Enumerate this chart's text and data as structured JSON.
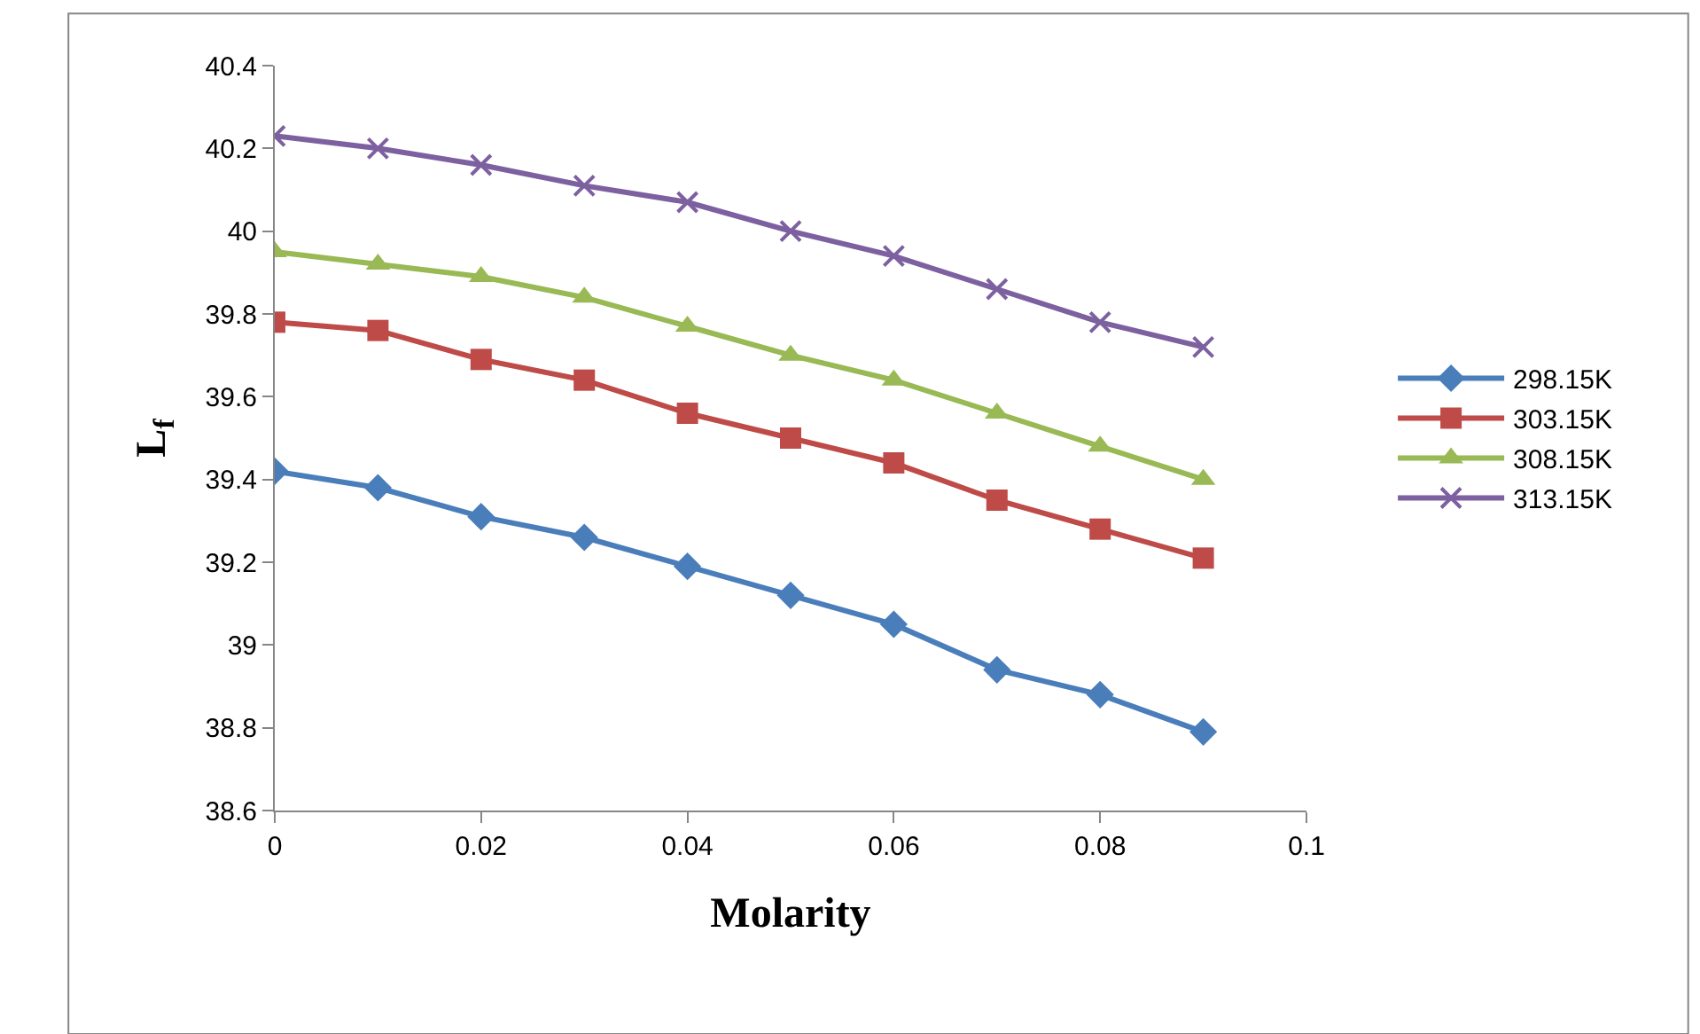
{
  "chart_data": {
    "type": "line",
    "xlabel": "Molarity",
    "ylabel": "L$_{f}$",
    "x": [
      0,
      0.01,
      0.02,
      0.03,
      0.04,
      0.05,
      0.06,
      0.07,
      0.08,
      0.09
    ],
    "series": [
      {
        "name": "298.15K",
        "color": "#4a7ebb",
        "marker": "diamond",
        "values": [
          39.42,
          39.38,
          39.31,
          39.26,
          39.19,
          39.12,
          39.05,
          38.94,
          38.88,
          38.79
        ]
      },
      {
        "name": "303.15K",
        "color": "#be4b48",
        "marker": "square",
        "values": [
          39.78,
          39.76,
          39.69,
          39.64,
          39.56,
          39.5,
          39.44,
          39.35,
          39.28,
          39.21
        ]
      },
      {
        "name": "308.15K",
        "color": "#98b954",
        "marker": "triangle",
        "values": [
          39.95,
          39.92,
          39.89,
          39.84,
          39.77,
          39.7,
          39.64,
          39.56,
          39.48,
          39.4
        ]
      },
      {
        "name": "313.15K",
        "color": "#7d60a0",
        "marker": "cross",
        "values": [
          40.23,
          40.2,
          40.16,
          40.11,
          40.07,
          40.0,
          39.94,
          39.86,
          39.78,
          39.72
        ]
      }
    ],
    "xlim": [
      0,
      0.1
    ],
    "xticks": [
      0,
      0.02,
      0.04,
      0.06,
      0.08,
      0.1
    ],
    "ylim": [
      38.6,
      40.4
    ],
    "yticks": [
      38.6,
      38.8,
      39,
      39.2,
      39.4,
      39.6,
      39.8,
      40,
      40.2,
      40.4
    ],
    "grid": false,
    "legend": "right",
    "line_style": "solid"
  }
}
